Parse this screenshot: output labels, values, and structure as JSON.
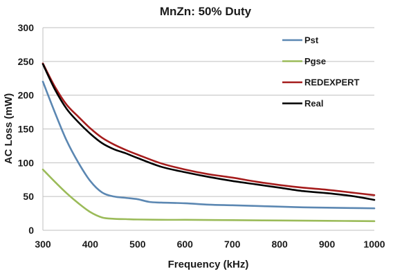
{
  "chart_data": {
    "type": "line",
    "title": "MnZn: 50% Duty",
    "xlabel": "Frequency (kHz)",
    "ylabel": "AC Loss (mW)",
    "xlim": [
      300,
      1000
    ],
    "ylim": [
      0,
      300
    ],
    "xticks": [
      300,
      400,
      500,
      600,
      700,
      800,
      900,
      1000
    ],
    "yticks": [
      0,
      50,
      100,
      150,
      200,
      250,
      300
    ],
    "grid": "horizontal",
    "legend_position": "top-right",
    "series": [
      {
        "name": "Pst",
        "color": "#5b87b2",
        "x": [
          300,
          325,
          350,
          375,
          400,
          425,
          450,
          475,
          500,
          525,
          550,
          600,
          650,
          700,
          750,
          800,
          850,
          900,
          950,
          1000
        ],
        "y": [
          220,
          175,
          133,
          100,
          73,
          56,
          50,
          48,
          46,
          42,
          41,
          40,
          38,
          37,
          36,
          35,
          34,
          33.5,
          33,
          32.5
        ]
      },
      {
        "name": "Pgse",
        "color": "#9bbb59",
        "x": [
          300,
          325,
          350,
          375,
          400,
          425,
          450,
          475,
          500,
          550,
          600,
          700,
          800,
          900,
          1000
        ],
        "y": [
          90,
          72,
          55,
          40,
          27,
          19,
          17,
          16.5,
          16,
          15.5,
          15.5,
          15,
          14.5,
          14,
          13.5
        ]
      },
      {
        "name": "REDEXPERT",
        "color": "#a51c1c",
        "x": [
          300,
          325,
          350,
          375,
          400,
          425,
          450,
          475,
          500,
          550,
          600,
          650,
          700,
          750,
          800,
          850,
          900,
          950,
          1000
        ],
        "y": [
          247,
          213,
          186,
          168,
          151,
          137,
          127,
          119,
          112,
          99,
          90,
          83,
          78,
          72,
          67,
          63,
          60,
          56,
          52
        ]
      },
      {
        "name": "Real",
        "color": "#000000",
        "x": [
          300,
          325,
          350,
          375,
          400,
          425,
          450,
          475,
          500,
          550,
          600,
          650,
          700,
          750,
          800,
          850,
          900,
          950,
          1000
        ],
        "y": [
          246,
          209,
          180,
          160,
          143,
          129,
          120,
          114,
          107,
          94,
          86,
          79,
          73,
          68,
          63,
          58,
          55,
          51,
          45
        ]
      }
    ]
  }
}
